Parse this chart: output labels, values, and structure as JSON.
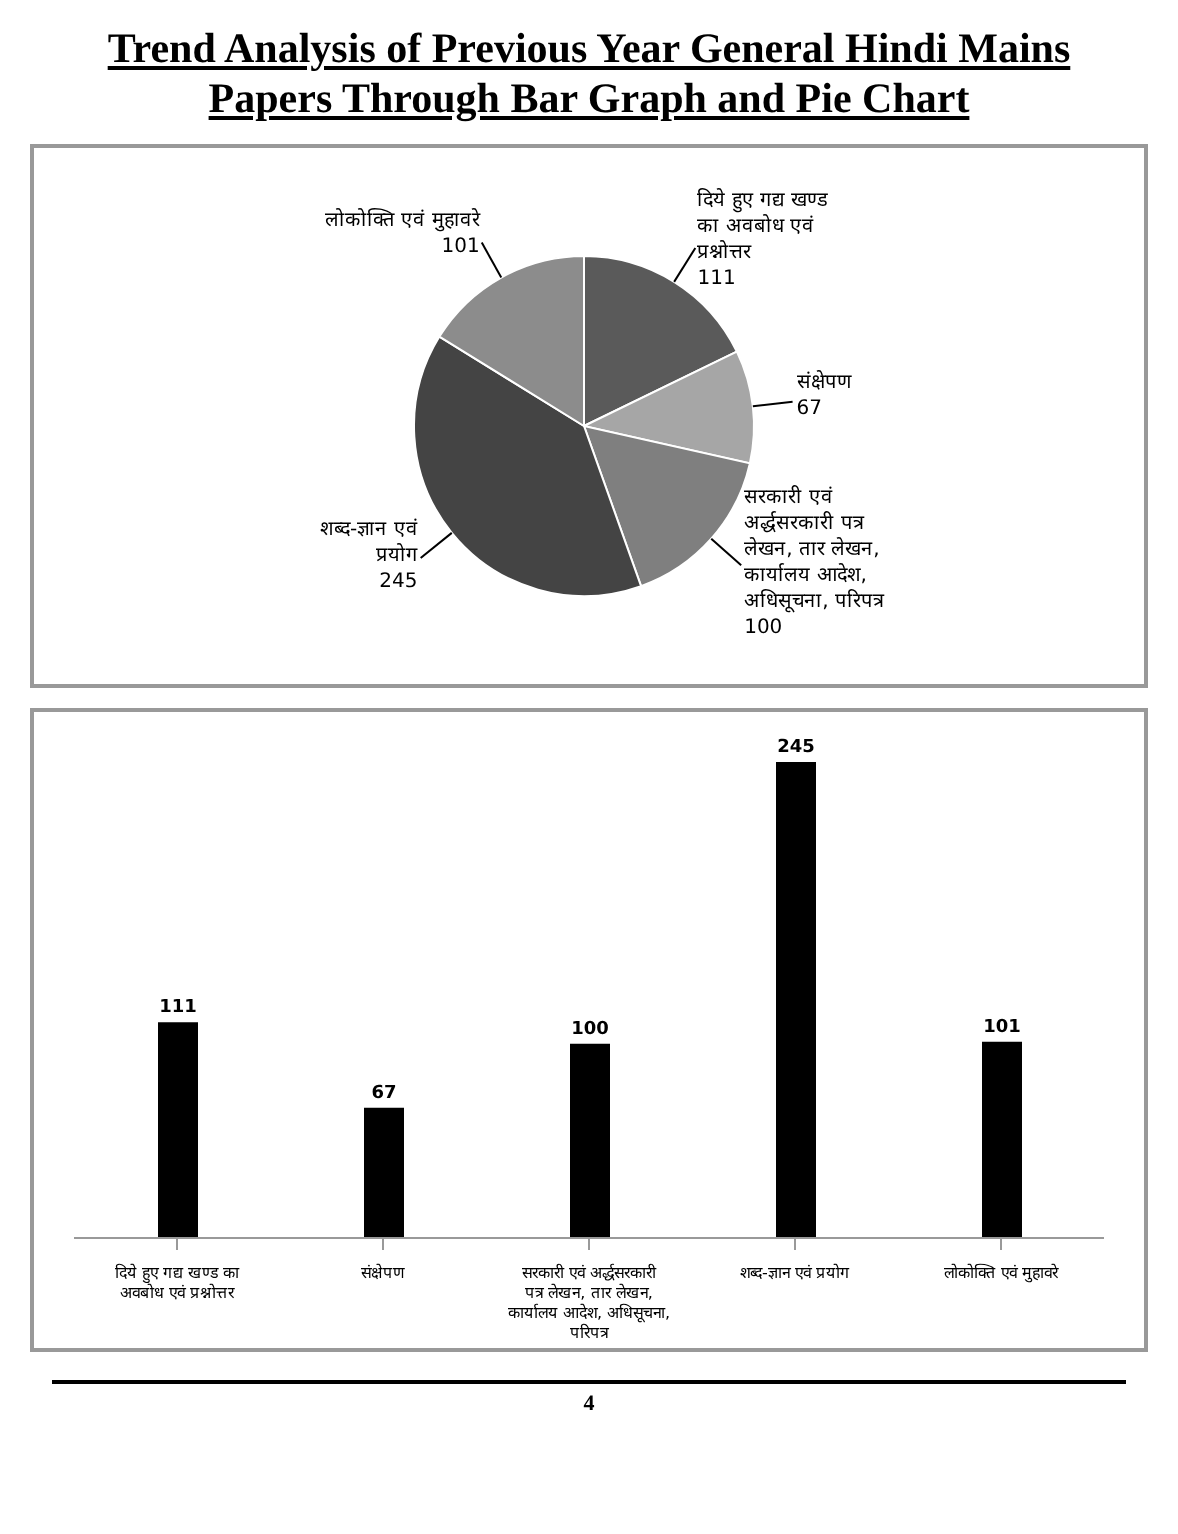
{
  "chart_data": [
    {
      "type": "pie",
      "title": "Trend Analysis of Previous Year General Hindi Mains Papers Through Bar Graph and Pie Chart",
      "categories": [
        "दिये हुए गद्य खण्ड का अवबोध एवं प्रश्नोत्तर",
        "संक्षेपण",
        "सरकारी एवं अर्द्धसरकारी पत्र लेखन, तार लेखन, कार्यालय आदेश, अधिसूचना, परिपत्र",
        "शब्द-ज्ञान एवं प्रयोग",
        "लोकोक्ति एवं मुहावरे"
      ],
      "values": [
        111,
        67,
        100,
        245,
        101
      ],
      "colors": [
        "#5a5a5a",
        "#a6a6a6",
        "#7f7f7f",
        "#444444",
        "#8c8c8c"
      ],
      "data_labels": true,
      "legend": false
    },
    {
      "type": "bar",
      "categories": [
        "दिये हुए गद्य खण्ड का अवबोध एवं प्रश्नोत्तर",
        "संक्षेपण",
        "सरकारी एवं अर्द्धसरकारी पत्र लेखन, तार लेखन, कार्यालय आदेश, अधिसूचना, परिपत्र",
        "शब्द-ज्ञान एवं प्रयोग",
        "लोकोक्ति एवं मुहावरे"
      ],
      "values": [
        111,
        67,
        100,
        245,
        101
      ],
      "color": "#000000",
      "data_labels": true,
      "grid": false,
      "legend": false,
      "annotations": [
        "4"
      ]
    }
  ]
}
